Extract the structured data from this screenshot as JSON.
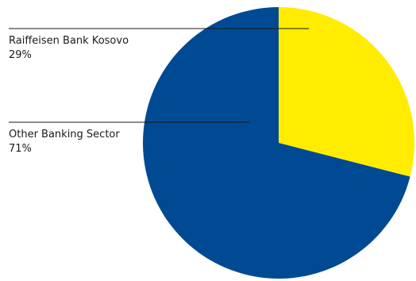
{
  "chart_data": {
    "type": "pie",
    "title": "",
    "slices": [
      {
        "label": "Raiffeisen Bank Kosovo",
        "value": 29,
        "display": "29%",
        "color": "#ffec00"
      },
      {
        "label": "Other Banking Sector",
        "value": 71,
        "display": "71%",
        "color": "#004a93"
      }
    ],
    "start_angle": "12 o'clock",
    "direction": "clockwise",
    "legend": "none",
    "label_style": "left-side labels with leader lines"
  }
}
